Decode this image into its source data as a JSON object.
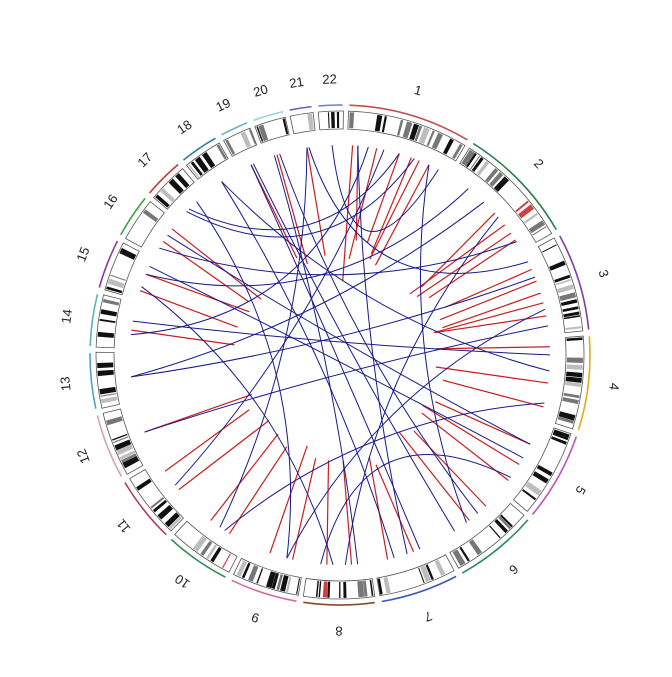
{
  "diagram": {
    "type": "circos",
    "chromosomes": [
      {
        "label": "1",
        "length": 248,
        "color": "#c0504d"
      },
      {
        "label": "2",
        "length": 242,
        "color": "#2e7d4f"
      },
      {
        "label": "3",
        "length": 198,
        "color": "#7b3fa0"
      },
      {
        "label": "4",
        "length": 190,
        "color": "#e6a817"
      },
      {
        "label": "5",
        "length": 181,
        "color": "#c04fc0"
      },
      {
        "label": "6",
        "length": 171,
        "color": "#2e8b57"
      },
      {
        "label": "7",
        "length": 159,
        "color": "#3b5bb5"
      },
      {
        "label": "8",
        "length": 145,
        "color": "#8b4a2b"
      },
      {
        "label": "9",
        "length": 138,
        "color": "#d36ea0"
      },
      {
        "label": "10",
        "length": 134,
        "color": "#2e8b57"
      },
      {
        "label": "11",
        "length": 135,
        "color": "#b33a5a"
      },
      {
        "label": "12",
        "length": 133,
        "color": "#d9a0b0"
      },
      {
        "label": "13",
        "length": 114,
        "color": "#4aa3c8"
      },
      {
        "label": "14",
        "length": 107,
        "color": "#5fb0c0"
      },
      {
        "label": "15",
        "length": 102,
        "color": "#8a3aa0"
      },
      {
        "label": "16",
        "length": 90,
        "color": "#3aa03a"
      },
      {
        "label": "17",
        "length": 83,
        "color": "#c03a3a"
      },
      {
        "label": "18",
        "length": 80,
        "color": "#2b7fa0"
      },
      {
        "label": "19",
        "length": 59,
        "color": "#6fb0d0"
      },
      {
        "label": "20",
        "length": 64,
        "color": "#a0d0e0"
      },
      {
        "label": "21",
        "length": 47,
        "color": "#6a5acd"
      },
      {
        "label": "22",
        "length": 51,
        "color": "#7a7ad0"
      }
    ],
    "links_color": "#1a1a8c",
    "ticks_color": "#c81e1e"
  }
}
